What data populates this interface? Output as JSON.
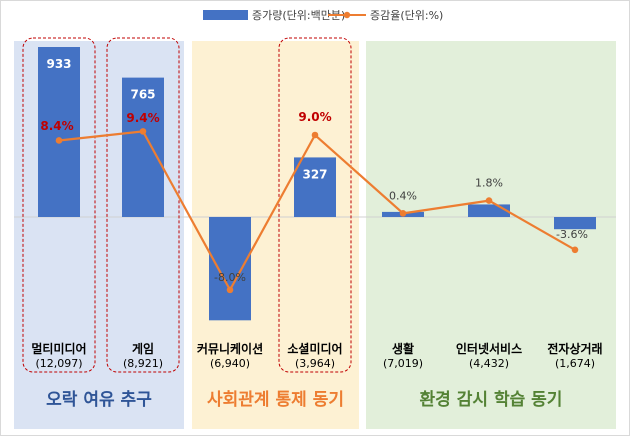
{
  "chart_data": {
    "type": "bar+line",
    "legend": [
      {
        "name": "증가량(단위:백만분)",
        "kind": "bar",
        "color": "#4472c4"
      },
      {
        "name": "증감율(단위:%)",
        "kind": "line",
        "color": "#ed7d31"
      }
    ],
    "categories": [
      {
        "name": "멀티미디어",
        "count": "(12,097)"
      },
      {
        "name": "게임",
        "count": "(8,921)"
      },
      {
        "name": "커뮤니케이션",
        "count": "(6,940)"
      },
      {
        "name": "소셜미디어",
        "count": "(3,964)"
      },
      {
        "name": "생활",
        "count": "(7,019)"
      },
      {
        "name": "인터넷서비스",
        "count": "(4,432)"
      },
      {
        "name": "전자상거래",
        "count": "(1,674)"
      }
    ],
    "series": [
      {
        "name": "증가량(단위:백만분)",
        "values": [
          933,
          765,
          -567,
          327,
          28,
          69,
          -67
        ],
        "labels": [
          "933",
          "765",
          "",
          "327",
          "",
          "",
          ""
        ]
      },
      {
        "name": "증감율(단위:%)",
        "values": [
          8.4,
          9.4,
          -8.0,
          9.0,
          0.4,
          1.8,
          -3.6
        ],
        "labels": [
          "8.4%",
          "9.4%",
          "-8.0%",
          "9.0%",
          "0.4%",
          "1.8%",
          "-3.6%"
        ],
        "highlighted": [
          true,
          true,
          false,
          true,
          false,
          false,
          false
        ]
      }
    ],
    "groups": [
      {
        "title": "오락 여유 추구",
        "members": [
          0,
          1
        ],
        "bg": "#dae3f3",
        "text_color": "#2f5597"
      },
      {
        "title": "사회관계 통제 동기",
        "members": [
          2,
          3
        ],
        "bg": "#fdf1d3",
        "text_color": "#ed7d31"
      },
      {
        "title": "환경 감시 학습 동기",
        "members": [
          4,
          5,
          6
        ],
        "bg": "#e2efda",
        "text_color": "#548235"
      }
    ],
    "highlighted_categories": [
      0,
      1,
      3
    ]
  }
}
